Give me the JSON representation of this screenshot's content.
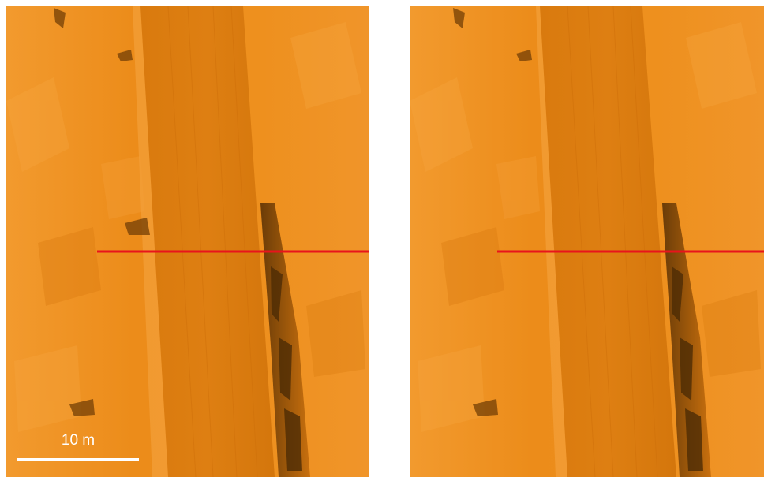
{
  "panels": [
    {
      "id": "left",
      "has_scalebar": true
    },
    {
      "id": "right",
      "has_scalebar": false
    }
  ],
  "scalebar": {
    "label": "10 m"
  },
  "colors": {
    "terrain": "#e8840f",
    "terrain_light": "#f29a2e",
    "road": "#d9780c",
    "shadow": "#5a3306",
    "profile_line": "#e8141c"
  }
}
